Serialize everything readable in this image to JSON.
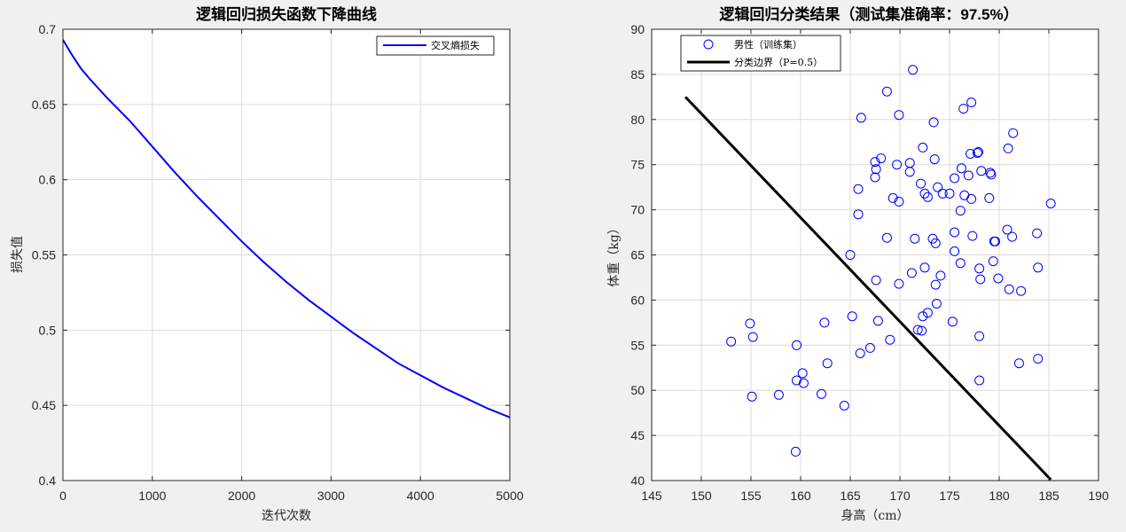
{
  "chart_data": [
    {
      "type": "line",
      "title": "逻辑回归损失函数下降曲线",
      "xlabel": "迭代次数",
      "ylabel": "损失值",
      "xlim": [
        0,
        5000
      ],
      "ylim": [
        0.4,
        0.7
      ],
      "xticks": [
        "0",
        "1000",
        "2000",
        "3000",
        "4000",
        "5000"
      ],
      "yticks": [
        "0.4",
        "0.45",
        "0.5",
        "0.55",
        "0.6",
        "0.65",
        "0.7"
      ],
      "grid": true,
      "legend_position": "top-right",
      "series": [
        {
          "name": "交叉熵损失",
          "color": "#0000ff",
          "x": [
            0,
            100,
            200,
            300,
            500,
            750,
            1000,
            1250,
            1500,
            1750,
            2000,
            2250,
            2500,
            2750,
            3000,
            3250,
            3500,
            3750,
            4000,
            4250,
            4500,
            4750,
            5000
          ],
          "y": [
            0.693,
            0.683,
            0.674,
            0.667,
            0.654,
            0.639,
            0.622,
            0.605,
            0.589,
            0.574,
            0.559,
            0.545,
            0.532,
            0.52,
            0.509,
            0.498,
            0.488,
            0.478,
            0.47,
            0.462,
            0.455,
            0.448,
            0.442
          ]
        }
      ]
    },
    {
      "type": "scatter",
      "title_main": "逻辑回归分类结果（测试集准确率：",
      "title_value": "97.5%",
      "title_end": "）",
      "xlabel": "身高（cm）",
      "ylabel": "体重（kg）",
      "xlim": [
        145,
        190
      ],
      "ylim": [
        40,
        90
      ],
      "xticks": [
        "145",
        "150",
        "155",
        "160",
        "165",
        "170",
        "175",
        "180",
        "185",
        "190"
      ],
      "yticks": [
        "40",
        "45",
        "50",
        "55",
        "60",
        "65",
        "70",
        "75",
        "80",
        "85",
        "90"
      ],
      "grid": true,
      "legend_position": "top-left",
      "series": [
        {
          "name": "男性（训练集）",
          "marker": "circle-open",
          "color": "#0000ff",
          "points": [
            [
              171.3,
              85.5
            ],
            [
              168.7,
              83.1
            ],
            [
              177.2,
              81.9
            ],
            [
              176.4,
              81.2
            ],
            [
              166.1,
              80.2
            ],
            [
              169.9,
              80.5
            ],
            [
              173.4,
              79.7
            ],
            [
              181.4,
              78.5
            ],
            [
              180.9,
              76.8
            ],
            [
              172.3,
              76.9
            ],
            [
              177.8,
              76.3
            ],
            [
              177.1,
              76.2
            ],
            [
              177.9,
              76.4
            ],
            [
              168.1,
              75.7
            ],
            [
              167.5,
              75.3
            ],
            [
              171.0,
              75.2
            ],
            [
              173.5,
              75.6
            ],
            [
              169.7,
              75.0
            ],
            [
              176.2,
              74.6
            ],
            [
              167.6,
              74.5
            ],
            [
              178.2,
              74.3
            ],
            [
              179.1,
              74.1
            ],
            [
              179.2,
              73.9
            ],
            [
              167.5,
              73.6
            ],
            [
              171.0,
              74.2
            ],
            [
              172.1,
              72.9
            ],
            [
              173.8,
              72.5
            ],
            [
              175.5,
              73.5
            ],
            [
              176.9,
              73.8
            ],
            [
              172.5,
              71.8
            ],
            [
              172.8,
              71.4
            ],
            [
              174.3,
              71.8
            ],
            [
              175.0,
              71.8
            ],
            [
              176.5,
              71.6
            ],
            [
              177.2,
              71.2
            ],
            [
              179.0,
              71.3
            ],
            [
              165.8,
              72.3
            ],
            [
              169.3,
              71.3
            ],
            [
              169.9,
              70.9
            ],
            [
              185.2,
              70.7
            ],
            [
              165.8,
              69.5
            ],
            [
              176.1,
              69.9
            ],
            [
              180.8,
              67.8
            ],
            [
              181.3,
              67.0
            ],
            [
              183.8,
              67.4
            ],
            [
              175.5,
              67.5
            ],
            [
              173.3,
              66.8
            ],
            [
              173.6,
              66.3
            ],
            [
              171.5,
              66.8
            ],
            [
              168.7,
              66.9
            ],
            [
              177.3,
              67.1
            ],
            [
              179.5,
              66.5
            ],
            [
              179.6,
              66.5
            ],
            [
              175.5,
              65.4
            ],
            [
              179.4,
              64.3
            ],
            [
              176.1,
              64.1
            ],
            [
              172.5,
              63.6
            ],
            [
              171.2,
              63.0
            ],
            [
              183.9,
              63.6
            ],
            [
              178.0,
              63.5
            ],
            [
              174.1,
              62.7
            ],
            [
              169.9,
              61.8
            ],
            [
              173.6,
              61.7
            ],
            [
              178.1,
              62.3
            ],
            [
              179.9,
              62.4
            ],
            [
              181.0,
              61.2
            ],
            [
              182.2,
              61.0
            ],
            [
              167.6,
              62.2
            ],
            [
              165.0,
              65.0
            ],
            [
              173.7,
              59.6
            ],
            [
              172.3,
              58.2
            ],
            [
              172.8,
              58.6
            ],
            [
              171.8,
              56.7
            ],
            [
              172.2,
              56.6
            ],
            [
              175.3,
              57.6
            ],
            [
              165.2,
              58.2
            ],
            [
              167.8,
              57.7
            ],
            [
              162.4,
              57.5
            ],
            [
              169.0,
              55.6
            ],
            [
              178.0,
              56.0
            ],
            [
              159.6,
              55.0
            ],
            [
              154.9,
              57.4
            ],
            [
              153.0,
              55.4
            ],
            [
              155.2,
              55.9
            ],
            [
              167.0,
              54.7
            ],
            [
              166.0,
              54.1
            ],
            [
              162.7,
              53.0
            ],
            [
              182.0,
              53.0
            ],
            [
              183.9,
              53.5
            ],
            [
              160.2,
              51.9
            ],
            [
              159.6,
              51.1
            ],
            [
              160.3,
              50.8
            ],
            [
              178.0,
              51.1
            ],
            [
              155.1,
              49.3
            ],
            [
              157.8,
              49.5
            ],
            [
              162.1,
              49.6
            ],
            [
              164.4,
              48.3
            ],
            [
              159.5,
              43.2
            ]
          ]
        },
        {
          "name": "分类边界（P=0.5）",
          "type": "line",
          "color": "#000000",
          "x": [
            148.4,
            185.2
          ],
          "y": [
            82.5,
            40.1
          ]
        }
      ]
    }
  ]
}
